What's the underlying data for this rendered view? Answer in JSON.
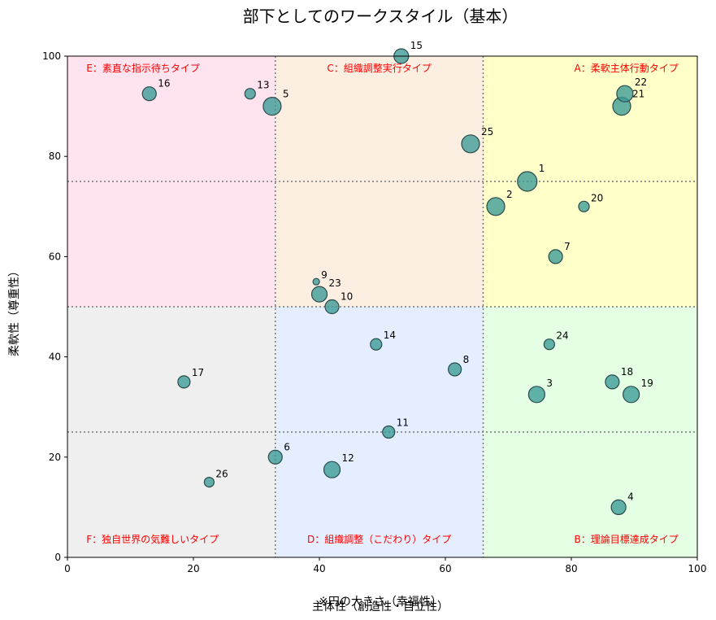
{
  "chart_data": {
    "type": "scatter",
    "title": "部下としてのワークスタイル（基本）",
    "xlabel": "主体性（創造性・自立性）",
    "ylabel": "柔軟性（尊重性）",
    "size_note": "※円の大きさ（幸福性）",
    "xlim": [
      0,
      100
    ],
    "ylim": [
      0,
      100
    ],
    "xticks": [
      0,
      20,
      40,
      60,
      80,
      100
    ],
    "yticks": [
      0,
      20,
      40,
      60,
      80,
      100
    ],
    "grid": false,
    "divider_x": [
      33,
      66
    ],
    "divider_y": [
      25,
      50,
      75
    ],
    "point_color": "#3a9a96",
    "regions": [
      {
        "x0": 0,
        "x1": 33,
        "y0": 50,
        "y1": 100,
        "color": "#ffe4f0",
        "label": "E：素直な指示待ちタイプ",
        "label_x": 3,
        "label_y": 97.5,
        "anchor": "start"
      },
      {
        "x0": 33,
        "x1": 66,
        "y0": 50,
        "y1": 100,
        "color": "#fdeee2",
        "label": "C：組織調整実行タイプ",
        "label_x": 49.5,
        "label_y": 97.5,
        "anchor": "middle"
      },
      {
        "x0": 66,
        "x1": 100,
        "y0": 50,
        "y1": 100,
        "color": "#ffffca",
        "label": "A：柔軟主体行動タイプ",
        "label_x": 97,
        "label_y": 97.5,
        "anchor": "end"
      },
      {
        "x0": 0,
        "x1": 33,
        "y0": 0,
        "y1": 50,
        "color": "#efefef",
        "label": "F：独自世界の気難しいタイプ",
        "label_x": 3,
        "label_y": 3.5,
        "anchor": "start"
      },
      {
        "x0": 33,
        "x1": 66,
        "y0": 0,
        "y1": 50,
        "color": "#e4eeff",
        "label": "D：組織調整（こだわり）タイプ",
        "label_x": 49.5,
        "label_y": 3.5,
        "anchor": "middle"
      },
      {
        "x0": 66,
        "x1": 100,
        "y0": 0,
        "y1": 50,
        "color": "#e4ffe4",
        "label": "B：理論目標達成タイプ",
        "label_x": 97,
        "label_y": 3.5,
        "anchor": "end"
      }
    ],
    "points": [
      {
        "label": "1",
        "x": 73,
        "y": 75,
        "size": 12
      },
      {
        "label": "2",
        "x": 68,
        "y": 70,
        "size": 11
      },
      {
        "label": "3",
        "x": 74.5,
        "y": 32.5,
        "size": 10
      },
      {
        "label": "4",
        "x": 87.5,
        "y": 10,
        "size": 9
      },
      {
        "label": "5",
        "x": 32.5,
        "y": 90,
        "size": 11
      },
      {
        "label": "6",
        "x": 33,
        "y": 20,
        "size": 8.5
      },
      {
        "label": "7",
        "x": 77.5,
        "y": 60,
        "size": 8.5
      },
      {
        "label": "8",
        "x": 61.5,
        "y": 37.5,
        "size": 8
      },
      {
        "label": "9",
        "x": 39.5,
        "y": 55,
        "size": 4
      },
      {
        "label": "10",
        "x": 42,
        "y": 50,
        "size": 8.5
      },
      {
        "label": "11",
        "x": 51,
        "y": 25,
        "size": 7.5
      },
      {
        "label": "12",
        "x": 42,
        "y": 17.5,
        "size": 10
      },
      {
        "label": "13",
        "x": 29,
        "y": 92.5,
        "size": 6.5
      },
      {
        "label": "14",
        "x": 49,
        "y": 42.5,
        "size": 7
      },
      {
        "label": "15",
        "x": 53,
        "y": 100,
        "size": 9
      },
      {
        "label": "16",
        "x": 13,
        "y": 92.5,
        "size": 8.5
      },
      {
        "label": "17",
        "x": 18.5,
        "y": 35,
        "size": 7.5
      },
      {
        "label": "18",
        "x": 86.5,
        "y": 35,
        "size": 8.5
      },
      {
        "label": "19",
        "x": 89.5,
        "y": 32.5,
        "size": 10
      },
      {
        "label": "20",
        "x": 82,
        "y": 70,
        "size": 6.5
      },
      {
        "label": "21",
        "x": 88,
        "y": 90,
        "size": 11
      },
      {
        "label": "22",
        "x": 88.5,
        "y": 92.5,
        "size": 10
      },
      {
        "label": "23",
        "x": 40,
        "y": 52.5,
        "size": 9.5
      },
      {
        "label": "24",
        "x": 76.5,
        "y": 42.5,
        "size": 6.5
      },
      {
        "label": "25",
        "x": 64,
        "y": 82.5,
        "size": 11
      },
      {
        "label": "26",
        "x": 22.5,
        "y": 15,
        "size": 6
      }
    ]
  }
}
